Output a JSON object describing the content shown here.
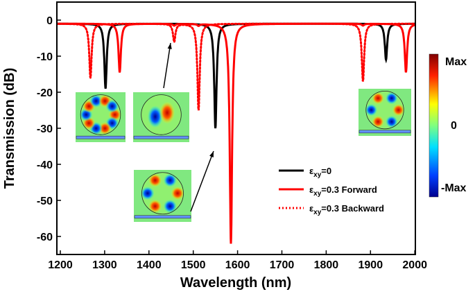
{
  "chart_data": {
    "type": "line",
    "xlabel": "Wavelength (nm)",
    "ylabel": "Transmission (dB)",
    "xlim": [
      1200,
      2000
    ],
    "ylim": [
      -65,
      5
    ],
    "xticks": [
      1200,
      1300,
      1400,
      1500,
      1600,
      1700,
      1800,
      1900,
      2000
    ],
    "yticks": [
      0,
      -10,
      -20,
      -30,
      -40,
      -50,
      -60
    ],
    "grid": false,
    "legend_position": "bottom-right",
    "baseline_db": -1,
    "series": [
      {
        "name": "εxy=0",
        "legend_sub": "xy",
        "legend_base": "ε",
        "legend_rest": "=0",
        "color": "#000000",
        "style": "solid",
        "dips": [
          {
            "x": 1302,
            "y": -19
          },
          {
            "x": 1550,
            "y": -30
          },
          {
            "x": 1935,
            "y": -11
          }
        ]
      },
      {
        "name": "εxy=0.3 Forward",
        "legend_sub": "xy",
        "legend_base": "ε",
        "legend_rest": "=0.3 Forward",
        "color": "#ff0000",
        "style": "solid",
        "dips": [
          {
            "x": 1334,
            "y": -14.5
          },
          {
            "x": 1457,
            "y": -1.5
          },
          {
            "x": 1512,
            "y": -1.5
          },
          {
            "x": 1585,
            "y": -62
          },
          {
            "x": 1883,
            "y": -1.5
          },
          {
            "x": 1980,
            "y": -14.5
          }
        ]
      },
      {
        "name": "εxy=0.3 Backward",
        "legend_sub": "xy",
        "legend_base": "ε",
        "legend_rest": "=0.3 Backward",
        "color": "#ff0000",
        "style": "dotted",
        "dips": [
          {
            "x": 1268,
            "y": -16
          },
          {
            "x": 1457,
            "y": -6
          },
          {
            "x": 1512,
            "y": -25
          },
          {
            "x": 1883,
            "y": -17
          }
        ]
      }
    ],
    "colorbar": {
      "labels": [
        "Max",
        "0",
        "-Max"
      ]
    }
  }
}
